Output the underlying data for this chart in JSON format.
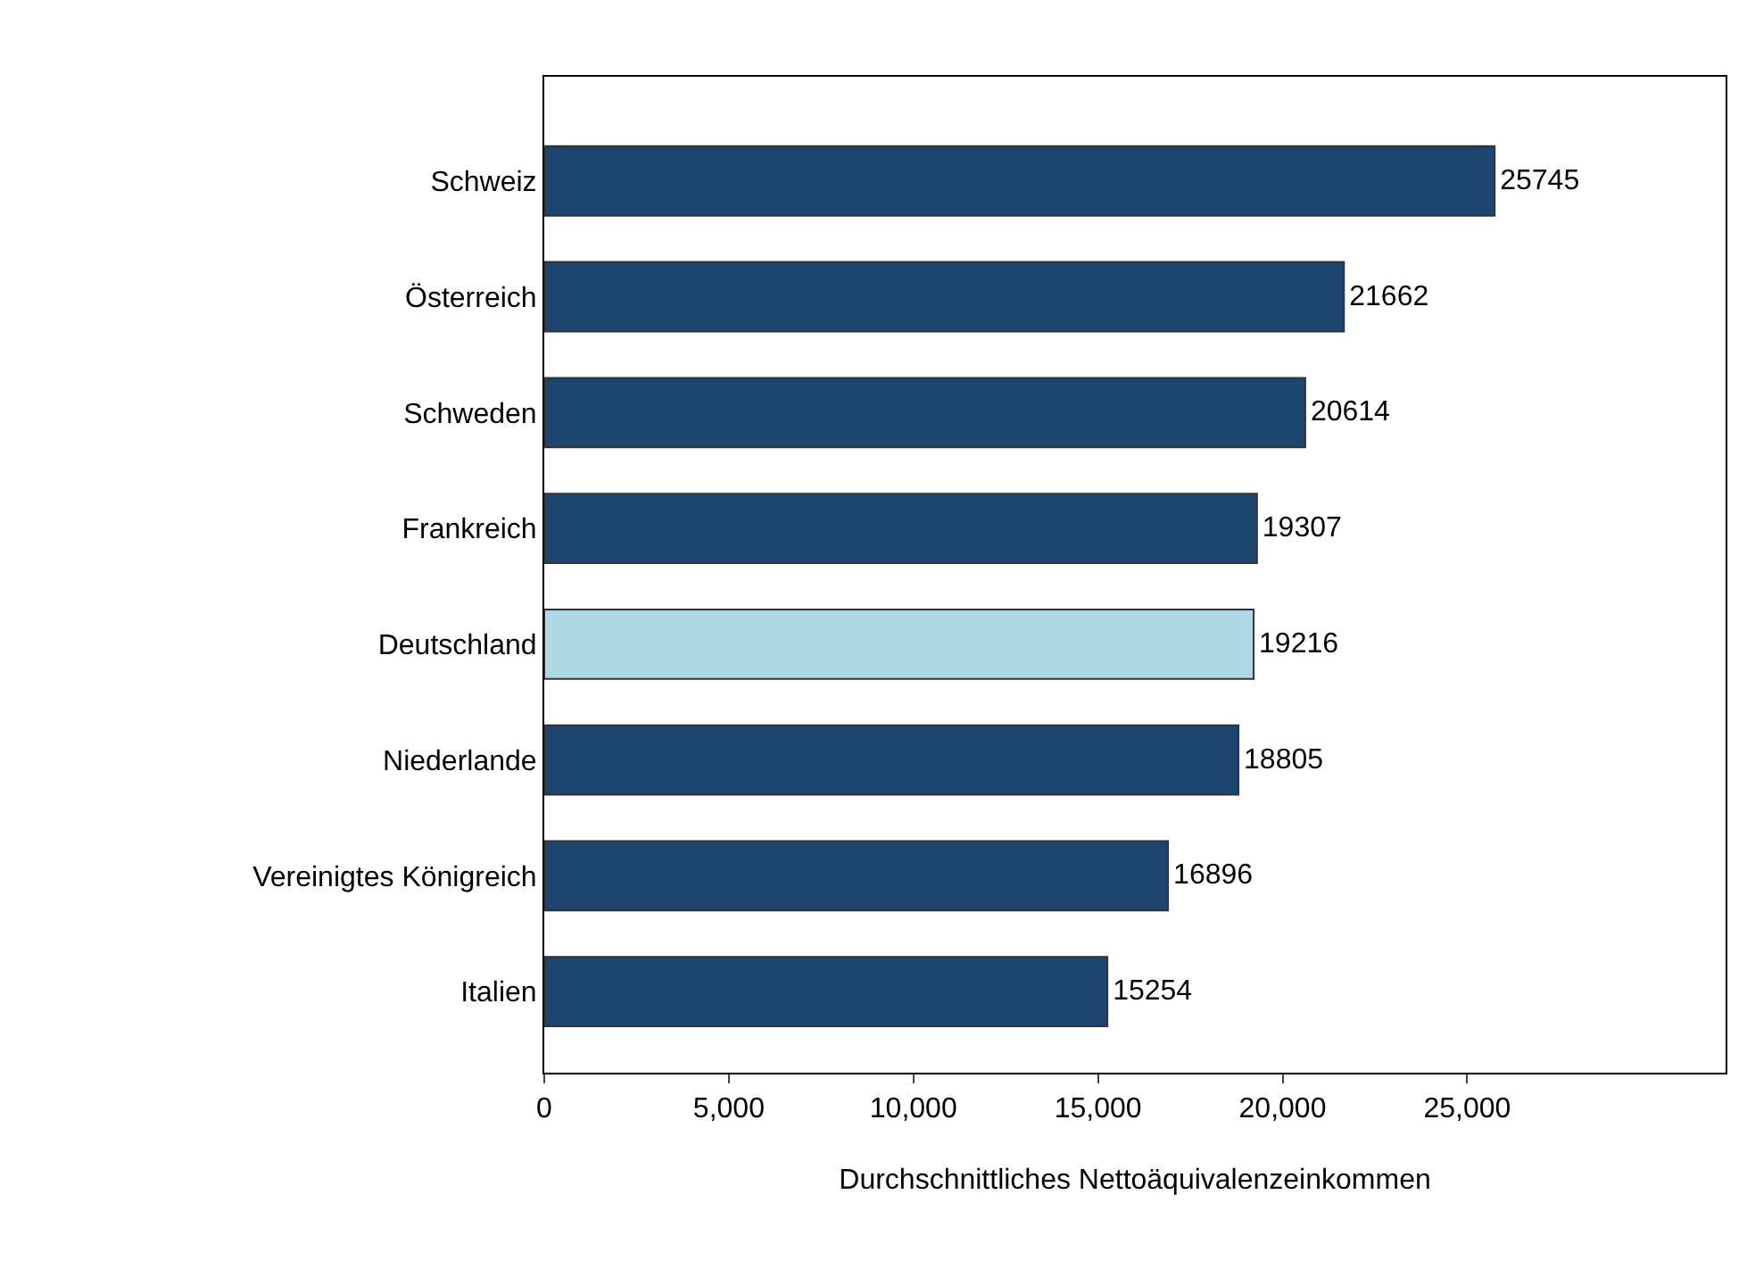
{
  "chart_data": {
    "type": "bar",
    "orientation": "horizontal",
    "xlabel": "Durchschnittliches Nettoäquivalenzeinkommen",
    "categories": [
      "Schweiz",
      "Österreich",
      "Schweden",
      "Frankreich",
      "Deutschland",
      "Niederlande",
      "Vereinigtes Königreich",
      "Italien"
    ],
    "values": [
      25745,
      21662,
      20614,
      19307,
      19216,
      18805,
      16896,
      15254
    ],
    "colors": [
      "#1c4670",
      "#1c4670",
      "#1c4670",
      "#1c4670",
      "#add8e6",
      "#1c4670",
      "#1c4670",
      "#1c4670"
    ],
    "xlim": [
      0,
      32000
    ],
    "xticks": [
      0,
      {
        "value": 5000,
        "label": "5,000"
      },
      {
        "value": 10000,
        "label": "10,000"
      },
      {
        "value": 15000,
        "label": "15,000"
      },
      {
        "value": 20000,
        "label": "20,000"
      },
      {
        "value": 25000,
        "label": "25,000"
      }
    ],
    "data_labels": true,
    "legend": false
  }
}
